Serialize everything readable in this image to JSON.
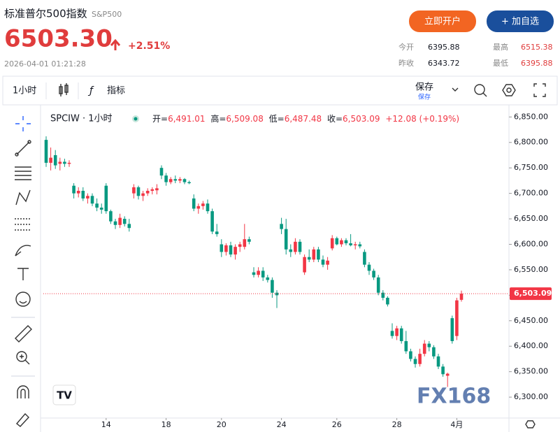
{
  "header": {
    "name": "标准普尔500指数",
    "code": "S&P500",
    "price": "6503.30",
    "change": "+2.51%",
    "time": "2026-04-01 01:21:28",
    "buttons": [
      "立即开户",
      "+ 加自选"
    ],
    "stats": [
      {
        "label": "今开",
        "value": "6395.88"
      },
      {
        "label": "最高",
        "value": "6515.38"
      },
      {
        "label": "昨收",
        "value": "6343.72"
      },
      {
        "label": "最低",
        "value": "6395.88"
      }
    ]
  },
  "toolbar": {
    "interval": "1小时",
    "indicators": "指标",
    "save": "保存",
    "save_sub": "保存"
  },
  "watermark": "FX168",
  "chart_data": {
    "type": "candlestick",
    "title": "SPCIW · 1小时",
    "legend_items": [
      {
        "label": "开=",
        "value": "6,491.01"
      },
      {
        "label": "高=",
        "value": "6,509.08"
      },
      {
        "label": "低=",
        "value": "6,487.48"
      },
      {
        "label": "收=",
        "value": "6,503.09"
      }
    ],
    "change_text": "+12.08 (+0.19%)",
    "up_color": "#f23645",
    "down_color": "#089981",
    "categories": [
      null,
      null,
      null,
      null,
      null,
      null,
      null,
      null,
      null,
      null,
      null,
      null,
      null,
      null,
      null,
      null,
      null,
      null,
      null,
      null,
      null,
      null,
      null,
      null,
      null,
      null,
      null,
      null,
      null,
      null,
      null,
      null,
      null,
      null,
      null,
      null,
      null,
      null,
      null,
      null,
      null,
      null,
      null,
      null,
      null,
      null,
      null,
      null,
      null,
      null,
      null,
      null,
      null,
      null,
      null,
      null,
      null,
      null,
      null,
      null,
      null,
      null,
      null,
      null,
      null,
      null,
      null,
      null,
      null,
      null,
      null,
      null,
      null,
      null,
      null,
      null,
      null,
      null,
      null,
      null,
      null,
      null,
      null,
      null,
      null,
      null,
      null,
      null,
      null,
      null,
      null
    ],
    "open": [
      6805,
      6760,
      6775,
      6758,
      6762,
      6758,
      6715,
      6700,
      6705,
      6690,
      6695,
      6680,
      6672,
      6715,
      6665,
      6645,
      6638,
      6650,
      6640,
      6700,
      6712,
      6695,
      6700,
      6705,
      6706,
      6750,
      6735,
      6722,
      6728,
      6725,
      6728,
      6722,
      6690,
      6670,
      6675,
      6680,
      6665,
      6625,
      6600,
      6585,
      6598,
      6580,
      6595,
      6595,
      6610,
      6545,
      6540,
      6548,
      6535,
      6530,
      6505,
      6640,
      6630,
      6590,
      6585,
      6605,
      6545,
      6575,
      6570,
      6590,
      6570,
      6560,
      6592,
      6612,
      6600,
      6608,
      6602,
      6598,
      6600,
      6585,
      6560,
      6548,
      6535,
      6505,
      6495,
      6430,
      6420,
      6435,
      6410,
      6390,
      6375,
      6365,
      6385,
      6405,
      6398,
      6380,
      6360,
      6342,
      6455,
      6420,
      6491.01
    ],
    "high": [
      6812,
      6790,
      6785,
      6770,
      6768,
      6765,
      6720,
      6712,
      6712,
      6700,
      6700,
      6690,
      6680,
      6720,
      6668,
      6650,
      6660,
      6655,
      6650,
      6718,
      6715,
      6705,
      6710,
      6712,
      6718,
      6755,
      6740,
      6732,
      6735,
      6732,
      6730,
      6725,
      6698,
      6680,
      6685,
      6688,
      6670,
      6640,
      6610,
      6602,
      6605,
      6600,
      6605,
      6640,
      6615,
      6555,
      6555,
      6555,
      6540,
      6535,
      6510,
      6652,
      6650,
      6600,
      6612,
      6610,
      6580,
      6590,
      6595,
      6595,
      6578,
      6575,
      6618,
      6615,
      6612,
      6612,
      6620,
      6605,
      6605,
      6590,
      6565,
      6552,
      6540,
      6510,
      6498,
      6445,
      6440,
      6440,
      6430,
      6395,
      6380,
      6395,
      6412,
      6410,
      6402,
      6385,
      6365,
      6348,
      6460,
      6495,
      6509.08
    ],
    "low": [
      6752,
      6745,
      6748,
      6745,
      6752,
      6752,
      6690,
      6692,
      6685,
      6680,
      6675,
      6665,
      6660,
      6660,
      6640,
      6630,
      6632,
      6635,
      6625,
      6690,
      6688,
      6685,
      6695,
      6698,
      6698,
      6728,
      6715,
      6718,
      6720,
      6720,
      6718,
      6718,
      6665,
      6660,
      6668,
      6660,
      6620,
      6615,
      6575,
      6578,
      6575,
      6570,
      6585,
      6590,
      6600,
      6535,
      6535,
      6528,
      6525,
      6495,
      6475,
      6620,
      6580,
      6575,
      6580,
      6580,
      6540,
      6565,
      6565,
      6565,
      6555,
      6550,
      6588,
      6598,
      6595,
      6598,
      6596,
      6590,
      6592,
      6555,
      6540,
      6530,
      6500,
      6490,
      6478,
      6415,
      6412,
      6405,
      6385,
      6370,
      6358,
      6360,
      6380,
      6390,
      6375,
      6355,
      6340,
      6320,
      6405,
      6412,
      6487.48
    ],
    "close": [
      6760,
      6770,
      6755,
      6762,
      6758,
      6760,
      6700,
      6705,
      6690,
      6695,
      6680,
      6672,
      6668,
      6665,
      6645,
      6638,
      6652,
      6640,
      6632,
      6712,
      6695,
      6700,
      6705,
      6708,
      6710,
      6735,
      6722,
      6728,
      6725,
      6728,
      6722,
      6720,
      6670,
      6675,
      6680,
      6665,
      6625,
      6620,
      6585,
      6598,
      6580,
      6595,
      6600,
      6610,
      6605,
      6540,
      6548,
      6535,
      6530,
      6505,
      6500,
      6630,
      6590,
      6585,
      6605,
      6585,
      6575,
      6570,
      6590,
      6570,
      6560,
      6568,
      6612,
      6600,
      6608,
      6602,
      6598,
      6600,
      6596,
      6560,
      6548,
      6535,
      6505,
      6495,
      6482,
      6420,
      6435,
      6410,
      6390,
      6375,
      6365,
      6385,
      6405,
      6398,
      6380,
      6360,
      6345,
      6346,
      6410,
      6490,
      6503.09
    ],
    "last_price": 6503.09,
    "last_price_label": "6,503.09",
    "ylim": [
      6259,
      6871
    ],
    "yticks": [
      {
        "value": 6300,
        "label": "6,300.00"
      },
      {
        "value": 6350,
        "label": "6,350.00"
      },
      {
        "value": 6400,
        "label": "6,400.00"
      },
      {
        "value": 6450,
        "label": "6,450.00"
      },
      {
        "value": 6500,
        "label": "6,500.00"
      },
      {
        "value": 6550,
        "label": "6,550.00"
      },
      {
        "value": 6600,
        "label": "6,600.00"
      },
      {
        "value": 6650,
        "label": "6,650.00"
      },
      {
        "value": 6700,
        "label": "6,700.00"
      },
      {
        "value": 6750,
        "label": "6,750.00"
      },
      {
        "value": 6800,
        "label": "6,800.00"
      },
      {
        "value": 6850,
        "label": "6,850.00"
      }
    ],
    "xticks": [
      {
        "value": 13,
        "label": "14"
      },
      {
        "value": 26,
        "label": "18"
      },
      {
        "value": 38,
        "label": "20"
      },
      {
        "value": 51,
        "label": "24"
      },
      {
        "value": 63,
        "label": "26"
      },
      {
        "value": 76,
        "label": "28"
      },
      {
        "value": 89,
        "label": "4月"
      }
    ],
    "grid": false
  }
}
